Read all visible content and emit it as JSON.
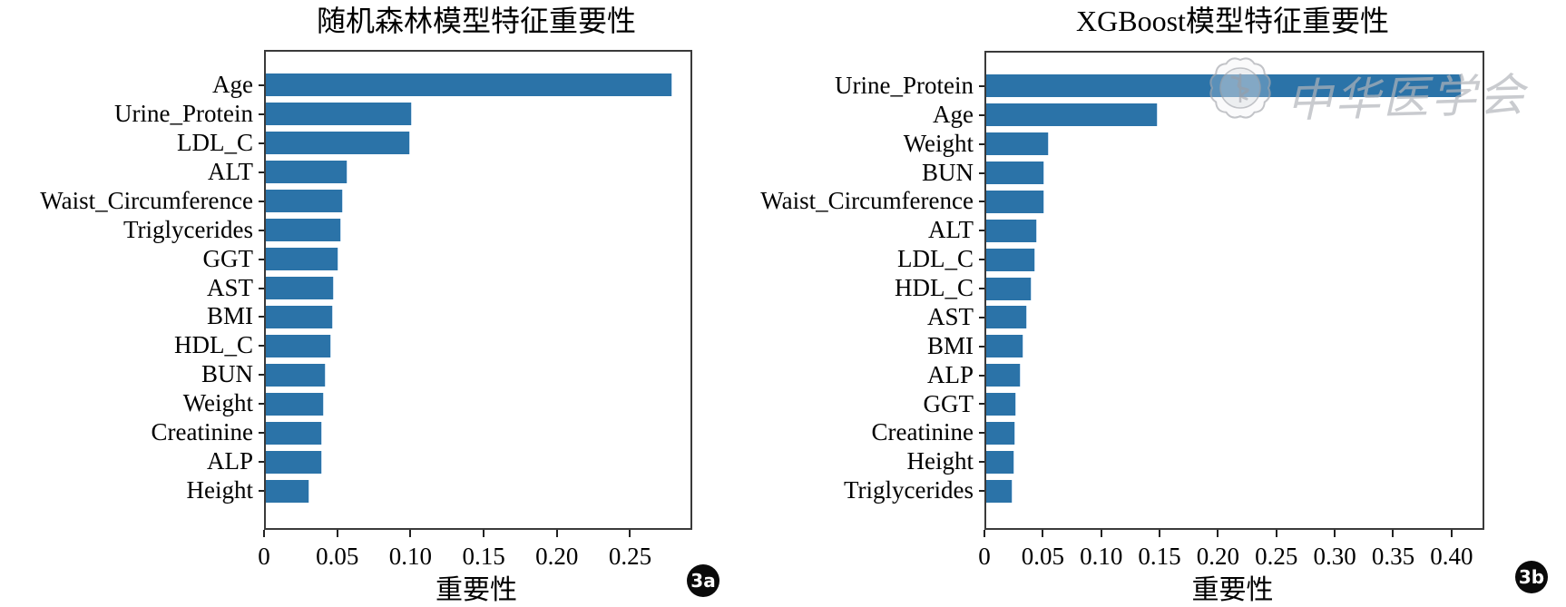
{
  "figure": {
    "badges": {
      "a": "3a",
      "b": "3b"
    },
    "frame_color": "#3a3a3a",
    "background": "#ffffff"
  },
  "watermark": {
    "text": "中华医学会",
    "seal_icon": "cma-flower-seal",
    "color": "#b2b4ba"
  },
  "chart_data": [
    {
      "type": "bar",
      "orientation": "horizontal",
      "title": "随机森林模型特征重要性",
      "xlabel": "重要性",
      "ylabel": "",
      "categories": [
        "Age",
        "Urine_Protein",
        "LDL_C",
        "ALT",
        "Waist_Circumference",
        "Triglycerides",
        "GGT",
        "AST",
        "BMI",
        "HDL_C",
        "BUN",
        "Weight",
        "Creatinine",
        "ALP",
        "Height"
      ],
      "values": [
        0.277,
        0.099,
        0.098,
        0.055,
        0.052,
        0.051,
        0.049,
        0.046,
        0.045,
        0.044,
        0.04,
        0.039,
        0.038,
        0.038,
        0.029
      ],
      "xlim": [
        0,
        0.29
      ],
      "xtick_values": [
        0,
        0.05,
        0.1,
        0.15,
        0.2,
        0.25
      ],
      "xtick_labels": [
        "0",
        "0.05",
        "0.10",
        "0.15",
        "0.20",
        "0.25"
      ],
      "bar_color": "#2b73a8",
      "grid": false,
      "legend": null,
      "badge": "3a"
    },
    {
      "type": "bar",
      "orientation": "horizontal",
      "title": "XGBoost模型特征重要性",
      "xlabel": "重要性",
      "ylabel": "",
      "categories": [
        "Urine_Protein",
        "Age",
        "Weight",
        "BUN",
        "Waist_Circumference",
        "ALT",
        "LDL_C",
        "HDL_C",
        "AST",
        "BMI",
        "ALP",
        "GGT",
        "Creatinine",
        "Height",
        "Triglycerides"
      ],
      "values": [
        0.406,
        0.146,
        0.053,
        0.049,
        0.049,
        0.043,
        0.041,
        0.038,
        0.034,
        0.031,
        0.029,
        0.025,
        0.024,
        0.023,
        0.022
      ],
      "xlim": [
        0,
        0.425
      ],
      "xtick_values": [
        0,
        0.05,
        0.1,
        0.15,
        0.2,
        0.25,
        0.3,
        0.35,
        0.4
      ],
      "xtick_labels": [
        "0",
        "0.05",
        "0.10",
        "0.15",
        "0.20",
        "0.25",
        "0.30",
        "0.35",
        "0.40"
      ],
      "bar_color": "#2b73a8",
      "grid": false,
      "legend": null,
      "badge": "3b"
    }
  ]
}
